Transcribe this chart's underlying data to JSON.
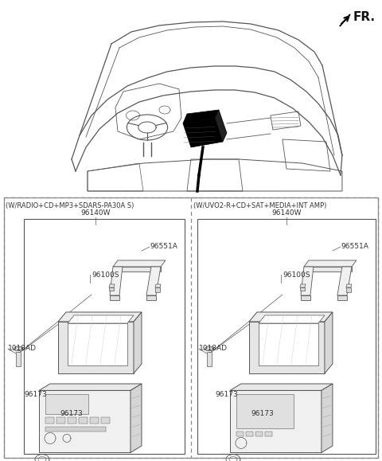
{
  "background_color": "#ffffff",
  "line_color": "#555555",
  "dash_color": "#888888",
  "fr_label": "FR.",
  "left_panel_title": "(W/RADIO+CD+MP3+SDARS-PA30A S)",
  "right_panel_title": "(W/UVO2-R+CD+SAT+MEDIA+INT AMP)",
  "figsize": [
    4.8,
    5.79
  ],
  "dpi": 100
}
